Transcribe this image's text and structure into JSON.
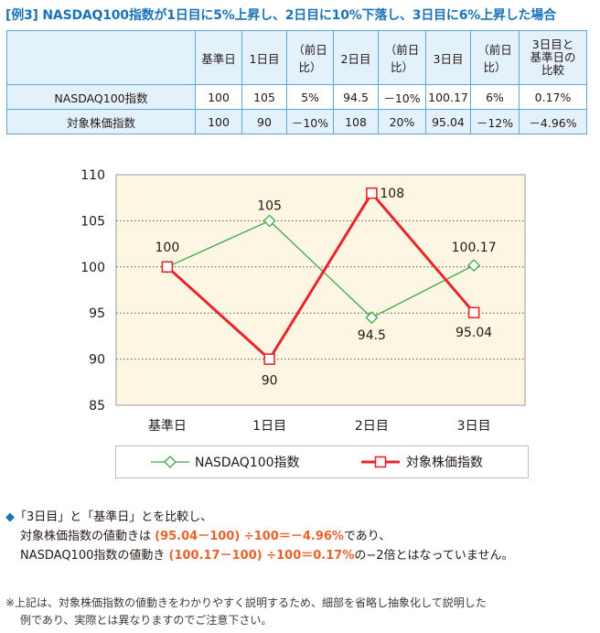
{
  "title": "[例3]  NASDAQ100指数が1日目に5%上昇し、2日目に10%下落し、3日目に6%上昇した場合",
  "table": {
    "headers": [
      "",
      "基準日",
      "1日目",
      "（前日比）",
      "2日目",
      "（前日比）",
      "3日目",
      "（前日比）",
      "3日目と\n基準日の\n比較"
    ],
    "rows": [
      [
        "NASDAQ100指数",
        "100",
        "105",
        "5%",
        "94.5",
        "－10%",
        "100.17",
        "6%",
        "0.17%"
      ],
      [
        "対象株価指数",
        "100",
        "90",
        "－10%",
        "108",
        "20%",
        "95.04",
        "－12%",
        "－4.96%"
      ]
    ]
  },
  "chart_data": {
    "type": "line",
    "categories": [
      "基準日",
      "1日目",
      "2日目",
      "3日目"
    ],
    "series": [
      {
        "name": "NASDAQ100指数",
        "values": [
          100,
          105,
          94.5,
          100.17
        ],
        "color": "#3aa84a",
        "marker": "diamond",
        "labels": [
          "100",
          "105",
          "94.5",
          "100.17"
        ]
      },
      {
        "name": "対象株価指数",
        "values": [
          100,
          90,
          108,
          95.04
        ],
        "color": "#e8252c",
        "marker": "square",
        "labels": [
          "",
          "90",
          "108",
          "95.04"
        ]
      }
    ],
    "ylim": [
      85,
      110
    ],
    "yticks": [
      "85",
      "90",
      "95",
      "100",
      "105",
      "110"
    ],
    "background": "#fdf6e3",
    "grid": "dotted",
    "legend_position": "bottom"
  },
  "notes": {
    "bullet": "◆",
    "line1": "「3日目」と「基準日」とを比較し、",
    "line2_pre": "対象株価指数の値動きは ",
    "line2_hl": "(95.04－100) ÷100＝－4.96%",
    "line2_post": "であり、",
    "line3_pre": "NASDAQ100指数の値動き ",
    "line3_hl": "(100.17－100) ÷100＝0.17%",
    "line3_post": "の−2倍とはなっていません。",
    "footnote1": "※上記は、対象株価指数の値動きをわかりやすく説明するため、細部を省略し抽象化して説明した",
    "footnote2": "例であり、実際とは異なりますのでご注意下さい。"
  }
}
